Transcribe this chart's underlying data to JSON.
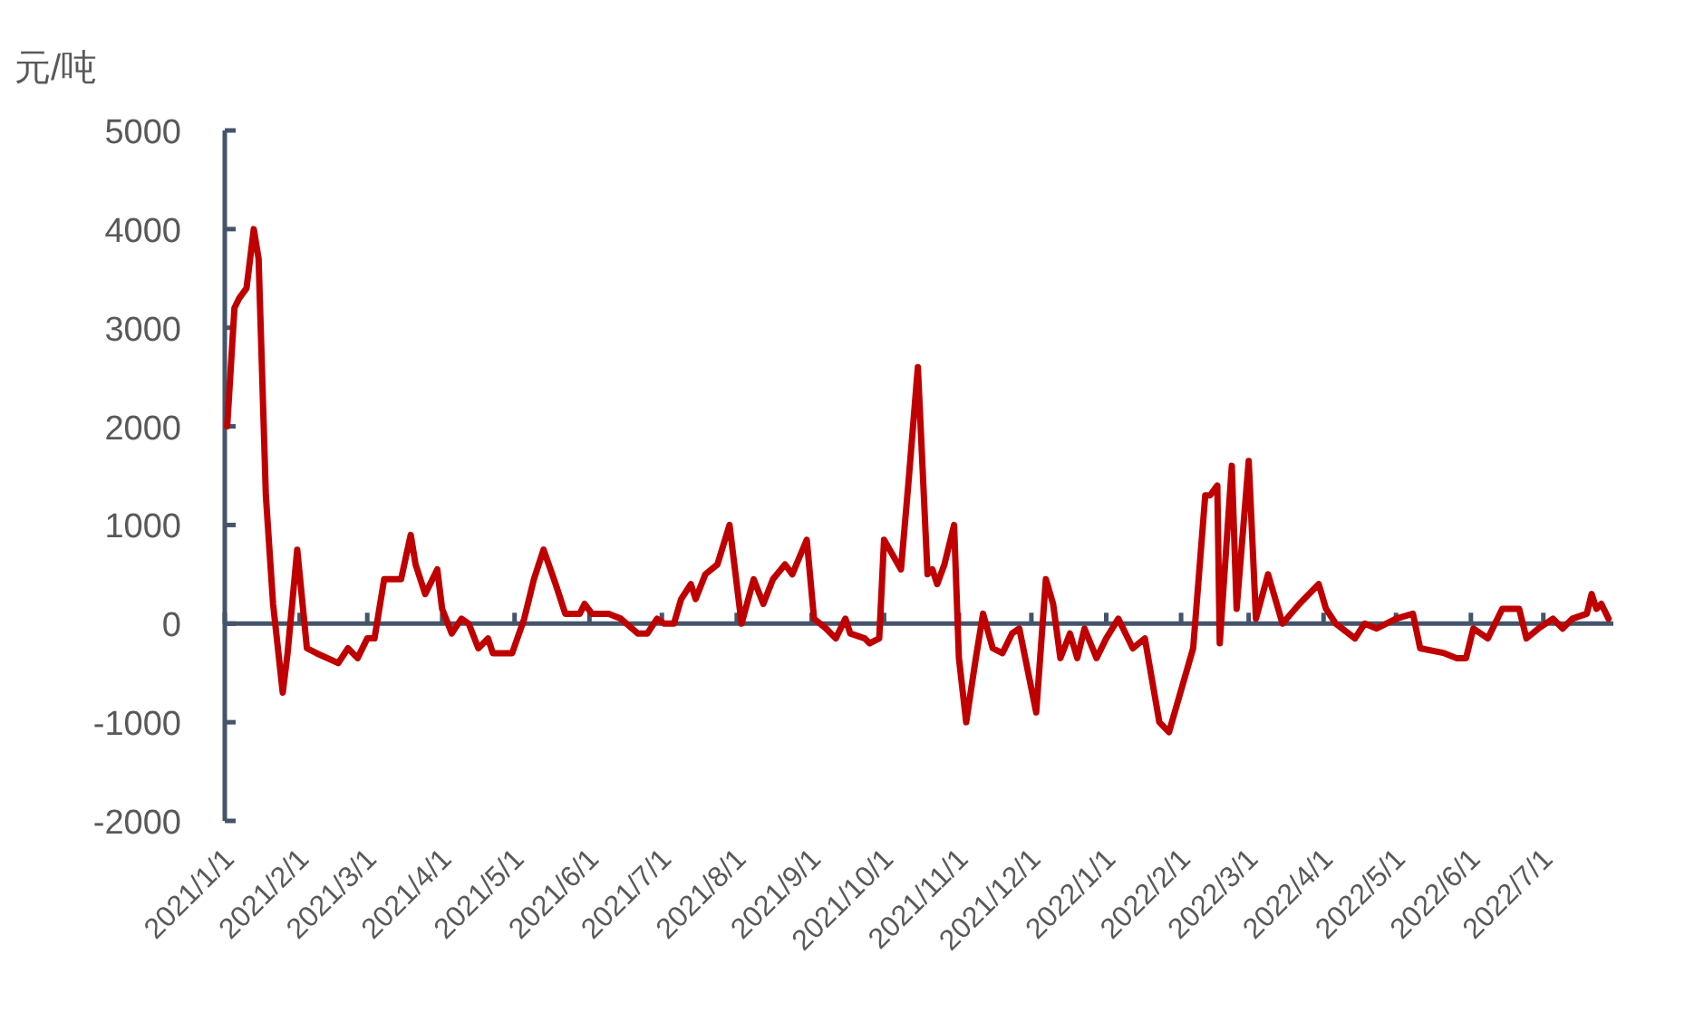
{
  "chart_data": {
    "type": "line",
    "ylabel": "元/吨",
    "x": [
      "2021-01-02",
      "2021-01-05",
      "2021-01-07",
      "2021-01-10",
      "2021-01-13",
      "2021-01-15",
      "2021-01-18",
      "2021-01-21",
      "2021-01-25",
      "2021-01-27",
      "2021-01-31",
      "2021-02-04",
      "2021-02-08",
      "2021-02-17",
      "2021-02-21",
      "2021-02-25",
      "2021-03-01",
      "2021-03-04",
      "2021-03-08",
      "2021-03-15",
      "2021-03-19",
      "2021-03-21",
      "2021-03-25",
      "2021-03-30",
      "2021-04-01",
      "2021-04-05",
      "2021-04-09",
      "2021-04-12",
      "2021-04-16",
      "2021-04-20",
      "2021-04-22",
      "2021-04-30",
      "2021-05-05",
      "2021-05-09",
      "2021-05-13",
      "2021-05-18",
      "2021-05-22",
      "2021-05-28",
      "2021-05-30",
      "2021-06-02",
      "2021-06-09",
      "2021-06-14",
      "2021-06-21",
      "2021-06-25",
      "2021-06-29",
      "2021-07-02",
      "2021-07-06",
      "2021-07-09",
      "2021-07-13",
      "2021-07-15",
      "2021-07-19",
      "2021-07-24",
      "2021-07-29",
      "2021-08-03",
      "2021-08-08",
      "2021-08-12",
      "2021-08-16",
      "2021-08-21",
      "2021-08-24",
      "2021-08-30",
      "2021-09-02",
      "2021-09-07",
      "2021-09-11",
      "2021-09-15",
      "2021-09-17",
      "2021-09-23",
      "2021-09-25",
      "2021-09-29",
      "2021-10-01",
      "2021-10-08",
      "2021-10-11",
      "2021-10-15",
      "2021-10-19",
      "2021-10-21",
      "2021-10-23",
      "2021-10-26",
      "2021-10-30",
      "2021-11-01",
      "2021-11-04",
      "2021-11-08",
      "2021-11-11",
      "2021-11-15",
      "2021-11-19",
      "2021-11-23",
      "2021-11-26",
      "2021-12-03",
      "2021-12-07",
      "2021-12-10",
      "2021-12-13",
      "2021-12-17",
      "2021-12-20",
      "2021-12-23",
      "2021-12-28",
      "2022-01-01",
      "2022-01-06",
      "2022-01-12",
      "2022-01-17",
      "2022-01-23",
      "2022-01-27",
      "2022-02-06",
      "2022-02-11",
      "2022-02-13",
      "2022-02-16",
      "2022-02-17",
      "2022-02-22",
      "2022-02-24",
      "2022-03-01",
      "2022-03-04",
      "2022-03-09",
      "2022-03-15",
      "2022-03-22",
      "2022-03-30",
      "2022-04-02",
      "2022-04-06",
      "2022-04-14",
      "2022-04-18",
      "2022-04-23",
      "2022-05-01",
      "2022-05-08",
      "2022-05-11",
      "2022-05-21",
      "2022-05-26",
      "2022-05-30",
      "2022-06-02",
      "2022-06-08",
      "2022-06-14",
      "2022-06-21",
      "2022-06-24",
      "2022-06-29",
      "2022-07-05",
      "2022-07-09",
      "2022-07-13",
      "2022-07-19",
      "2022-07-21",
      "2022-07-23",
      "2022-07-25",
      "2022-07-28"
    ],
    "series": [
      {
        "color": "#c00000",
        "values": [
          2000,
          3200,
          3300,
          3400,
          4000,
          3700,
          1300,
          200,
          -700,
          -300,
          750,
          -250,
          -300,
          -400,
          -250,
          -350,
          -150,
          -150,
          450,
          450,
          900,
          600,
          300,
          550,
          150,
          -100,
          50,
          0,
          -250,
          -150,
          -300,
          -300,
          50,
          450,
          750,
          400,
          100,
          100,
          200,
          100,
          100,
          50,
          -100,
          -100,
          50,
          0,
          0,
          250,
          400,
          250,
          500,
          600,
          1000,
          0,
          450,
          200,
          450,
          600,
          500,
          850,
          50,
          -50,
          -150,
          50,
          -100,
          -150,
          -200,
          -150,
          850,
          550,
          1400,
          2600,
          500,
          550,
          400,
          600,
          1000,
          -350,
          -1000,
          -350,
          100,
          -250,
          -300,
          -100,
          -50,
          -900,
          450,
          200,
          -350,
          -100,
          -350,
          -50,
          -350,
          -150,
          50,
          -250,
          -150,
          -1000,
          -1100,
          -250,
          1300,
          1300,
          1400,
          -200,
          1600,
          150,
          1650,
          50,
          500,
          0,
          200,
          400,
          150,
          0,
          -150,
          0,
          -50,
          50,
          100,
          -250,
          -300,
          -350,
          -350,
          -50,
          -150,
          150,
          150,
          -150,
          -50,
          50,
          -50,
          50,
          100,
          300,
          150,
          200,
          50
        ]
      }
    ],
    "xlim": [
      "2021-01-01",
      "2022-07-30"
    ],
    "xticks": [
      {
        "value": "2021-01-01",
        "label": "2021/1/1"
      },
      {
        "value": "2021-02-01",
        "label": "2021/2/1"
      },
      {
        "value": "2021-03-01",
        "label": "2021/3/1"
      },
      {
        "value": "2021-04-01",
        "label": "2021/4/1"
      },
      {
        "value": "2021-05-01",
        "label": "2021/5/1"
      },
      {
        "value": "2021-06-01",
        "label": "2021/6/1"
      },
      {
        "value": "2021-07-01",
        "label": "2021/7/1"
      },
      {
        "value": "2021-08-01",
        "label": "2021/8/1"
      },
      {
        "value": "2021-09-01",
        "label": "2021/9/1"
      },
      {
        "value": "2021-10-01",
        "label": "2021/10/1"
      },
      {
        "value": "2021-11-01",
        "label": "2021/11/1"
      },
      {
        "value": "2021-12-01",
        "label": "2021/12/1"
      },
      {
        "value": "2022-01-01",
        "label": "2022/1/1"
      },
      {
        "value": "2022-02-01",
        "label": "2022/2/1"
      },
      {
        "value": "2022-03-01",
        "label": "2022/3/1"
      },
      {
        "value": "2022-04-01",
        "label": "2022/4/1"
      },
      {
        "value": "2022-05-01",
        "label": "2022/5/1"
      },
      {
        "value": "2022-06-01",
        "label": "2022/6/1"
      },
      {
        "value": "2022-07-01",
        "label": "2022/7/1"
      }
    ],
    "ylim": [
      -2000,
      5000
    ],
    "yticks": [
      -2000,
      -1000,
      0,
      1000,
      2000,
      3000,
      4000,
      5000
    ]
  }
}
